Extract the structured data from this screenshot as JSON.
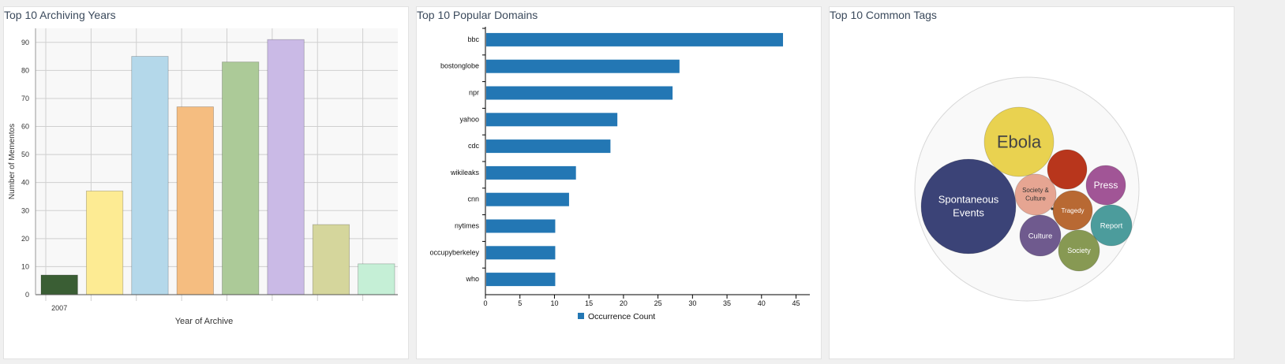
{
  "panels": [
    {
      "title": "Top 10 Archiving Years"
    },
    {
      "title": "Top 10 Popular Domains"
    },
    {
      "title": "Top 10 Common Tags"
    }
  ],
  "chart_data": [
    {
      "type": "bar",
      "title": "Top 10 Archiving Years",
      "xlabel": "Year of Archive",
      "ylabel": "Number of Mementos",
      "ylim": [
        0,
        95
      ],
      "yticks": [
        0,
        10,
        20,
        30,
        40,
        50,
        60,
        70,
        80,
        90
      ],
      "grid": true,
      "categories": [
        "2007",
        "",
        "",
        "",
        "",
        "",
        "",
        ""
      ],
      "values": [
        7,
        37,
        85,
        67,
        83,
        91,
        25,
        11
      ],
      "colors": [
        "#3a5e34",
        "#fdeb93",
        "#b4d8ea",
        "#f5bd80",
        "#acca98",
        "#cabae6",
        "#d5d69c",
        "#c5efd6"
      ]
    },
    {
      "type": "bar",
      "orientation": "horizontal",
      "title": "Top 10 Popular Domains",
      "categories": [
        "bbc",
        "bostonglobe",
        "npr",
        "yahoo",
        "cdc",
        "wikileaks",
        "cnn",
        "nytimes",
        "occupyberkeley",
        "who"
      ],
      "values": [
        43,
        28,
        27,
        19,
        18,
        13,
        12,
        10,
        10,
        10
      ],
      "xlim": [
        0,
        47
      ],
      "xticks": [
        0,
        5,
        10,
        15,
        20,
        25,
        30,
        35,
        40,
        45
      ],
      "series": [
        {
          "name": "Occurrence Count",
          "color": "#2377b4"
        }
      ],
      "legend": "bottom"
    },
    {
      "type": "bubble",
      "title": "Top 10 Common Tags",
      "labels": [
        "Spontaneous Events",
        "Ebola",
        "Press",
        "Society & Culture",
        "Tragedy",
        "Report",
        "Culture",
        "Society"
      ],
      "colors": [
        "#3b4377",
        "#e9d250",
        "#a15596",
        "#e6a592",
        "#b86933",
        "#4c9c9c",
        "#6f5a8e",
        "#879953",
        "#b8361c"
      ]
    }
  ]
}
